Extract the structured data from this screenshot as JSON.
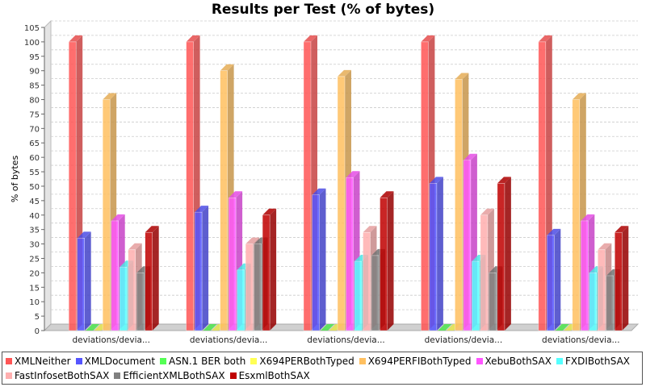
{
  "chart_data": {
    "type": "bar",
    "title": "Results per Test (% of bytes)",
    "xlabel": "",
    "ylabel": "% of bytes",
    "ylim": [
      0,
      105
    ],
    "ytick_step": 5,
    "grid": true,
    "legend_position": "bottom",
    "categories": [
      "deviations/devia...",
      "deviations/devia...",
      "deviations/devia...",
      "deviations/devia...",
      "deviations/devia..."
    ],
    "series": [
      {
        "name": "XMLNeither",
        "color": "#ff5555",
        "values": [
          100,
          100,
          100,
          100,
          100
        ]
      },
      {
        "name": "XMLDocument",
        "color": "#5555ff",
        "values": [
          32,
          41,
          47,
          51,
          33
        ]
      },
      {
        "name": "ASN.1 BER both",
        "color": "#55ff55",
        "values": [
          0,
          0,
          0,
          0,
          0
        ]
      },
      {
        "name": "X694PERBothTyped",
        "color": "#ffff55",
        "values": [
          0,
          0,
          0,
          0,
          0
        ]
      },
      {
        "name": "X694PERFIBothTyped",
        "color": "#ffc060",
        "values": [
          80,
          90,
          88,
          87,
          80
        ]
      },
      {
        "name": "XebuBothSAX",
        "color": "#ff55ff",
        "values": [
          38,
          46,
          53,
          59,
          38
        ]
      },
      {
        "name": "FXDIBothSAX",
        "color": "#55ffff",
        "values": [
          22,
          21,
          24,
          24,
          20
        ]
      },
      {
        "name": "FastInfosetBothSAX",
        "color": "#ffafaf",
        "values": [
          28,
          30,
          34,
          40,
          28
        ]
      },
      {
        "name": "EfficientXMLBothSAX",
        "color": "#808080",
        "values": [
          20,
          30,
          26,
          20,
          19
        ]
      },
      {
        "name": "EsxmlBothSAX",
        "color": "#c00000",
        "values": [
          34,
          40,
          46,
          51,
          34
        ]
      }
    ]
  }
}
